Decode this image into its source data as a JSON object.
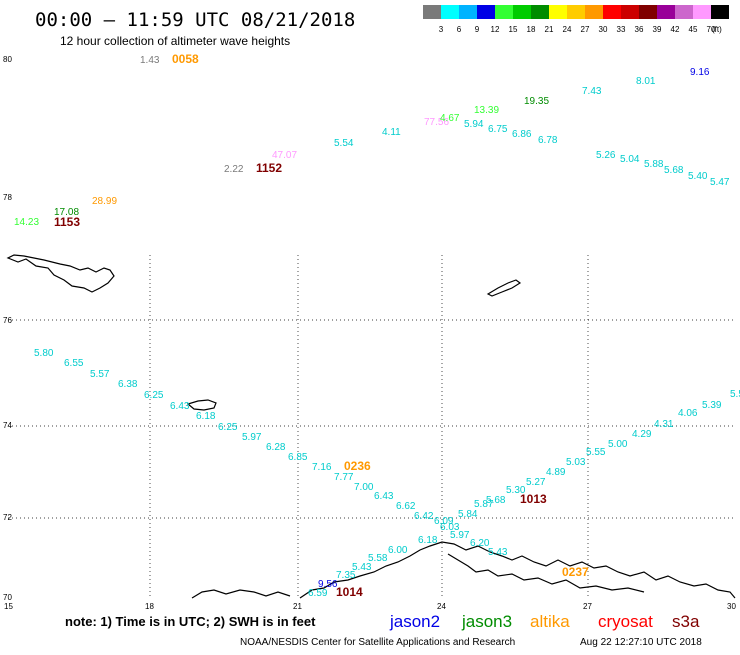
{
  "header": {
    "title": "00:00 – 11:59 UTC 08/21/2018",
    "subtitle": "12 hour collection of altimeter wave heights"
  },
  "colorbar": {
    "swatches": [
      "#7a7a7a",
      "#00ffff",
      "#00b3ff",
      "#0000e6",
      "#33ff33",
      "#00cc00",
      "#008c00",
      "#ffff00",
      "#ffcc00",
      "#ff9900",
      "#ff0000",
      "#cc0000",
      "#800000",
      "#990099",
      "#cc66cc",
      "#ff99ff",
      "#000000"
    ],
    "labels": [
      "3",
      "6",
      "9",
      "12",
      "15",
      "18",
      "21",
      "24",
      "27",
      "30",
      "33",
      "36",
      "39",
      "42",
      "45",
      "70"
    ],
    "unit": "(ft)"
  },
  "axes": {
    "x_ticks": [
      "15",
      "18",
      "21",
      "24",
      "27",
      "30"
    ],
    "y_ticks": [
      "70",
      "72",
      "74",
      "76",
      "78",
      "80"
    ]
  },
  "time_labels": [
    {
      "text": "0058",
      "color": "#ff9900"
    },
    {
      "text": "1152",
      "color": "#800000"
    },
    {
      "text": "1153",
      "color": "#800000"
    },
    {
      "text": "0236",
      "color": "#ff9900"
    },
    {
      "text": "1013",
      "color": "#800000"
    },
    {
      "text": "0237",
      "color": "#ff9900"
    },
    {
      "text": "1014",
      "color": "#800000"
    }
  ],
  "wave_heights": [
    {
      "v": "1.43",
      "c": "#7a7a7a"
    },
    {
      "v": "2.22",
      "c": "#7a7a7a"
    },
    {
      "v": "47.07",
      "c": "#ff99ff"
    },
    {
      "v": "77.56",
      "c": "#ff99ff"
    },
    {
      "v": "4.67",
      "c": "#33ff33"
    },
    {
      "v": "13.39",
      "c": "#33ff33"
    },
    {
      "v": "19.35",
      "c": "#008c00"
    },
    {
      "v": "9.16",
      "c": "#0000e6"
    },
    {
      "v": "17.08",
      "c": "#008c00"
    },
    {
      "v": "14.23",
      "c": "#33ff33"
    },
    {
      "v": "28.99",
      "c": "#ff9900"
    },
    {
      "v": "5.54",
      "c": "#00cccc"
    },
    {
      "v": "4.11",
      "c": "#00cccc"
    },
    {
      "v": "5.94",
      "c": "#00cccc"
    },
    {
      "v": "6.75",
      "c": "#00cccc"
    },
    {
      "v": "6.86",
      "c": "#00cccc"
    },
    {
      "v": "6.78",
      "c": "#00cccc"
    },
    {
      "v": "7.43",
      "c": "#00cccc"
    },
    {
      "v": "8.01",
      "c": "#00cccc"
    },
    {
      "v": "5.26",
      "c": "#00cccc"
    },
    {
      "v": "5.04",
      "c": "#00cccc"
    },
    {
      "v": "5.88",
      "c": "#00cccc"
    },
    {
      "v": "5.68",
      "c": "#00cccc"
    },
    {
      "v": "5.40",
      "c": "#00cccc"
    },
    {
      "v": "5.47",
      "c": "#00cccc"
    },
    {
      "v": "5.80",
      "c": "#00cccc"
    },
    {
      "v": "6.55",
      "c": "#00cccc"
    },
    {
      "v": "5.57",
      "c": "#00cccc"
    },
    {
      "v": "6.38",
      "c": "#00cccc"
    },
    {
      "v": "6.25",
      "c": "#00cccc"
    },
    {
      "v": "6.43",
      "c": "#00cccc"
    },
    {
      "v": "6.18",
      "c": "#00cccc"
    },
    {
      "v": "6.25",
      "c": "#00cccc"
    },
    {
      "v": "5.97",
      "c": "#00cccc"
    },
    {
      "v": "6.28",
      "c": "#00cccc"
    },
    {
      "v": "6.85",
      "c": "#00cccc"
    },
    {
      "v": "7.16",
      "c": "#00cccc"
    },
    {
      "v": "7.77",
      "c": "#00cccc"
    },
    {
      "v": "7.00",
      "c": "#00cccc"
    },
    {
      "v": "6.43",
      "c": "#00cccc"
    },
    {
      "v": "6.62",
      "c": "#00cccc"
    },
    {
      "v": "6.42",
      "c": "#00cccc"
    },
    {
      "v": "6.09",
      "c": "#00cccc"
    },
    {
      "v": "6.03",
      "c": "#00cccc"
    },
    {
      "v": "5.97",
      "c": "#00cccc"
    },
    {
      "v": "6.20",
      "c": "#00cccc"
    },
    {
      "v": "5.43",
      "c": "#00cccc"
    },
    {
      "v": "6.18",
      "c": "#00cccc"
    },
    {
      "v": "6.00",
      "c": "#00cccc"
    },
    {
      "v": "5.58",
      "c": "#00cccc"
    },
    {
      "v": "5.43",
      "c": "#00cccc"
    },
    {
      "v": "7.35",
      "c": "#00cccc"
    },
    {
      "v": "5.84",
      "c": "#00cccc"
    },
    {
      "v": "5.87",
      "c": "#00cccc"
    },
    {
      "v": "5.68",
      "c": "#00cccc"
    },
    {
      "v": "5.30",
      "c": "#00cccc"
    },
    {
      "v": "5.27",
      "c": "#00cccc"
    },
    {
      "v": "4.89",
      "c": "#00cccc"
    },
    {
      "v": "5.03",
      "c": "#00cccc"
    },
    {
      "v": "5.55",
      "c": "#00cccc"
    },
    {
      "v": "5.00",
      "c": "#00cccc"
    },
    {
      "v": "4.29",
      "c": "#00cccc"
    },
    {
      "v": "4.31",
      "c": "#00cccc"
    },
    {
      "v": "4.06",
      "c": "#00cccc"
    },
    {
      "v": "5.39",
      "c": "#00cccc"
    },
    {
      "v": "5.5",
      "c": "#00cccc"
    },
    {
      "v": "9.56",
      "c": "#0000e6"
    },
    {
      "v": "6.59",
      "c": "#00cccc"
    }
  ],
  "footer": {
    "note": "note: 1) Time is in UTC; 2) SWH is in feet",
    "legend": [
      {
        "name": "jason2",
        "color": "#0000e6"
      },
      {
        "name": "jason3",
        "color": "#008c00"
      },
      {
        "name": "altika",
        "color": "#ff9900"
      },
      {
        "name": "cryosat",
        "color": "#ff0000"
      },
      {
        "name": "s3a",
        "color": "#800000"
      }
    ],
    "credit": "NOAA/NESDIS Center for Satellite Applications and Research",
    "timestamp": "Aug 22 12:27:10 UTC 2018"
  }
}
